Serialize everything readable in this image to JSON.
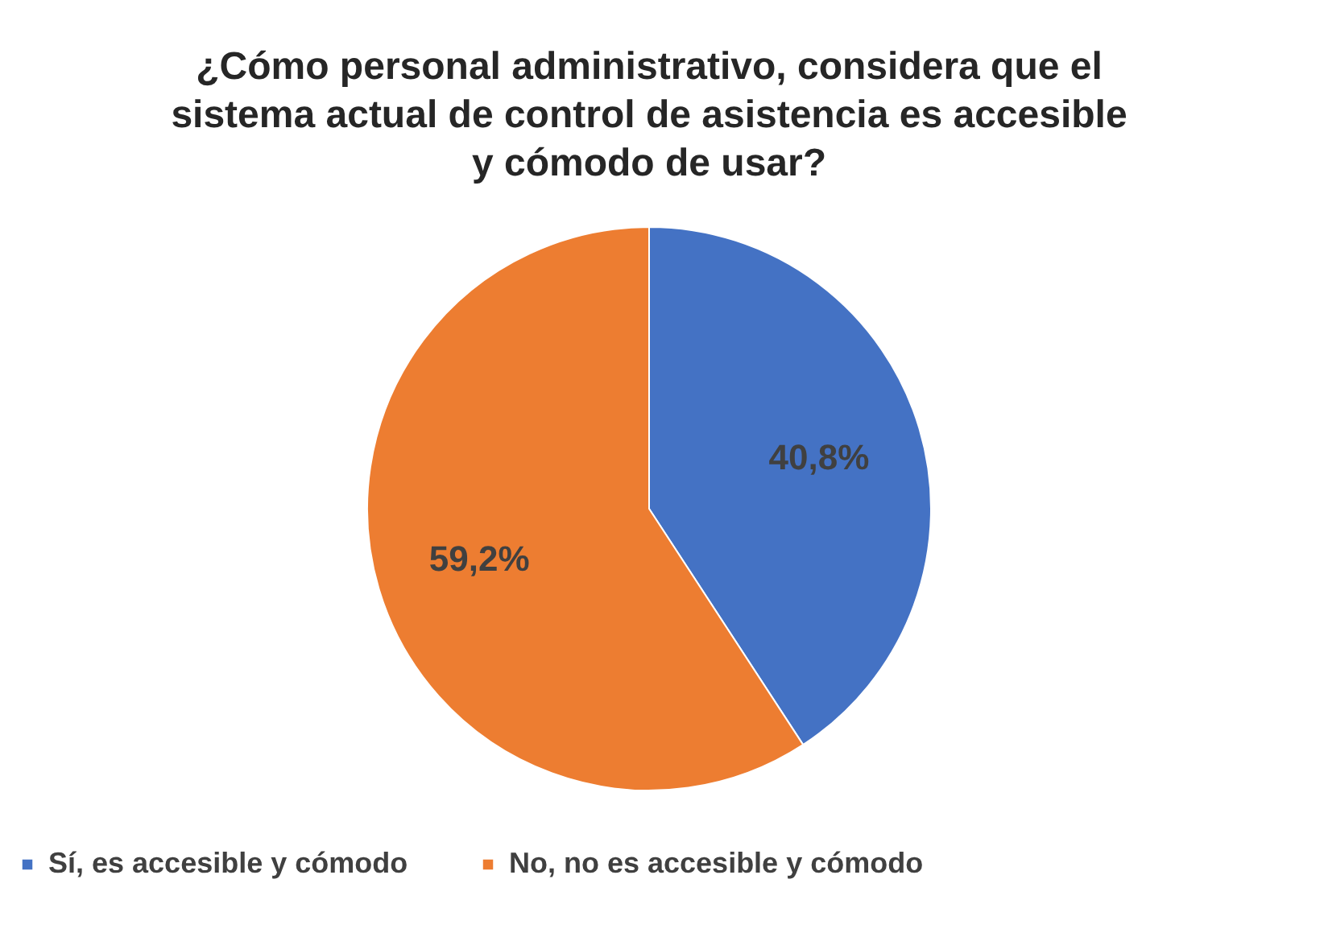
{
  "chart_data": {
    "type": "pie",
    "title": "¿Cómo personal administrativo, considera que el sistema actual de control de asistencia es accesible y cómodo de usar?",
    "categories": [
      "Sí, es accesible y cómodo",
      "No, no es accesible y cómodo"
    ],
    "values": [
      40.8,
      59.2
    ],
    "value_labels": [
      "40,8%",
      "59,2%"
    ],
    "colors": [
      "#4472c4",
      "#ed7d31"
    ],
    "legend": "bottom"
  }
}
